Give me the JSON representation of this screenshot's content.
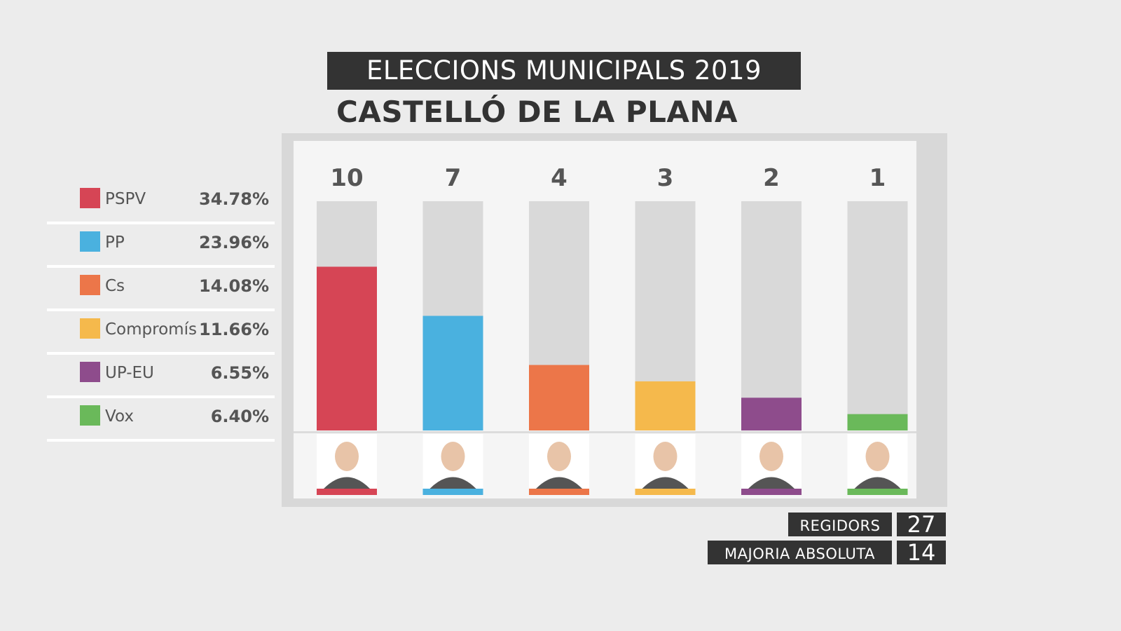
{
  "header": {
    "title": "ELECCIONS MUNICIPALS 2019",
    "subtitle": "CASTELLÓ DE LA PLANA"
  },
  "legend": [
    {
      "party": "PSPV",
      "percent": "34.78%",
      "color": "#d64555"
    },
    {
      "party": "PP",
      "percent": "23.96%",
      "color": "#4ab1df"
    },
    {
      "party": "Cs",
      "percent": "14.08%",
      "color": "#ec7649"
    },
    {
      "party": "Compromís",
      "percent": "11.66%",
      "color": "#f5b94c"
    },
    {
      "party": "UP-EU",
      "percent": "6.55%",
      "color": "#8e4c8c"
    },
    {
      "party": "Vox",
      "percent": "6.40%",
      "color": "#6ab95a"
    }
  ],
  "footer": {
    "regidors_label": "REGIDORS",
    "regidors_value": "27",
    "majoria_label": "MAJORIA ABSOLUTA",
    "majoria_value": "14"
  },
  "chart_data": {
    "type": "bar",
    "title": "ELECCIONS MUNICIPALS 2019 — CASTELLÓ DE LA PLANA",
    "xlabel": "",
    "ylabel": "Regidors",
    "categories": [
      "PSPV",
      "PP",
      "Cs",
      "Compromís",
      "UP-EU",
      "Vox"
    ],
    "values": [
      10,
      7,
      4,
      3,
      2,
      1
    ],
    "vote_percent": [
      34.78,
      23.96,
      14.08,
      11.66,
      6.55,
      6.4
    ],
    "colors": [
      "#d64555",
      "#4ab1df",
      "#ec7649",
      "#f5b94c",
      "#8e4c8c",
      "#6ab95a"
    ],
    "ylim": [
      0,
      14
    ],
    "grid": false,
    "legend_position": "left",
    "total_seats": 27,
    "absolute_majority": 14
  }
}
